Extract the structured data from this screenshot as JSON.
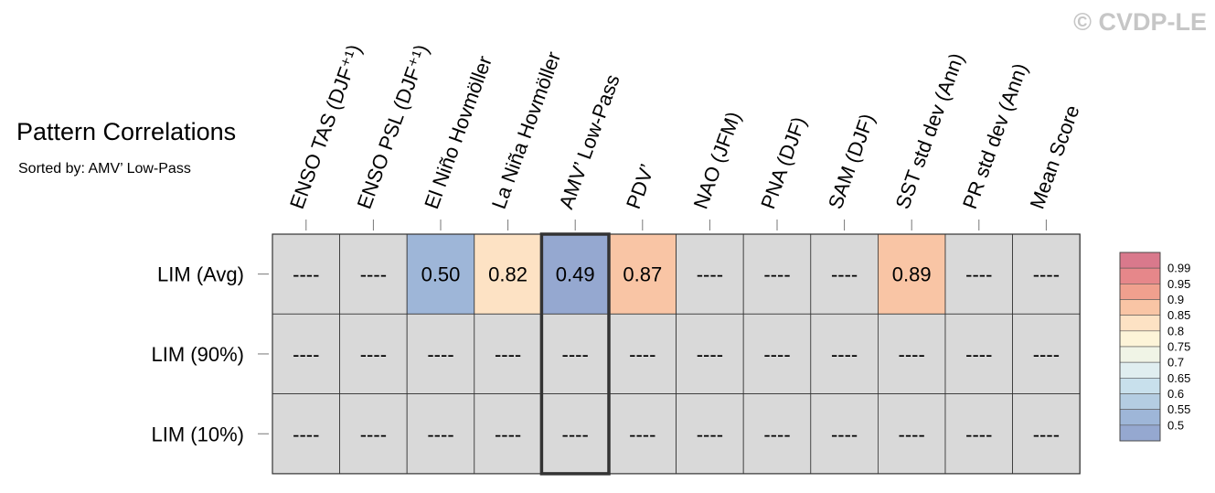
{
  "title": "Pattern Correlations",
  "subtitle": "Sorted by: AMV’ Low-Pass",
  "watermark": "© CVDP-LE",
  "chart_data": {
    "type": "heatmap",
    "columns": [
      "ENSO TAS (DJF⁺¹)",
      "ENSO PSL (DJF⁺¹)",
      "El Niño Hovmöller",
      "La Niña Hovmöller",
      "AMV’ Low-Pass",
      "PDV’",
      "NAO (JFM)",
      "PNA (DJF)",
      "SAM (DJF)",
      "SST std dev (Ann)",
      "PR std dev (Ann)",
      "Mean Score"
    ],
    "rows": [
      "LIM (Avg)",
      "LIM (90%)",
      "LIM (10%)"
    ],
    "values": [
      [
        null,
        null,
        0.5,
        0.82,
        0.49,
        0.87,
        null,
        null,
        null,
        0.89,
        null,
        null
      ],
      [
        null,
        null,
        null,
        null,
        null,
        null,
        null,
        null,
        null,
        null,
        null,
        null
      ],
      [
        null,
        null,
        null,
        null,
        null,
        null,
        null,
        null,
        null,
        null,
        null,
        null
      ]
    ],
    "missing_label": "----",
    "highlighted_column": "AMV’ Low-Pass",
    "colorbar": {
      "ticks": [
        "0.99",
        "0.95",
        "0.9",
        "0.85",
        "0.8",
        "0.75",
        "0.7",
        "0.65",
        "0.6",
        "0.55",
        "0.5"
      ],
      "tick_values": [
        0.99,
        0.95,
        0.9,
        0.85,
        0.8,
        0.75,
        0.7,
        0.65,
        0.6,
        0.55,
        0.5
      ],
      "colors": [
        "#d9798c",
        "#e6878a",
        "#f0a08e",
        "#f9c5a5",
        "#fde2c4",
        "#fdf4d8",
        "#f0f4e6",
        "#e0eef0",
        "#c8e0ec",
        "#b4cde2",
        "#9eb6d8",
        "#95a8d0"
      ],
      "missing_color": "#d9d9d9"
    }
  }
}
